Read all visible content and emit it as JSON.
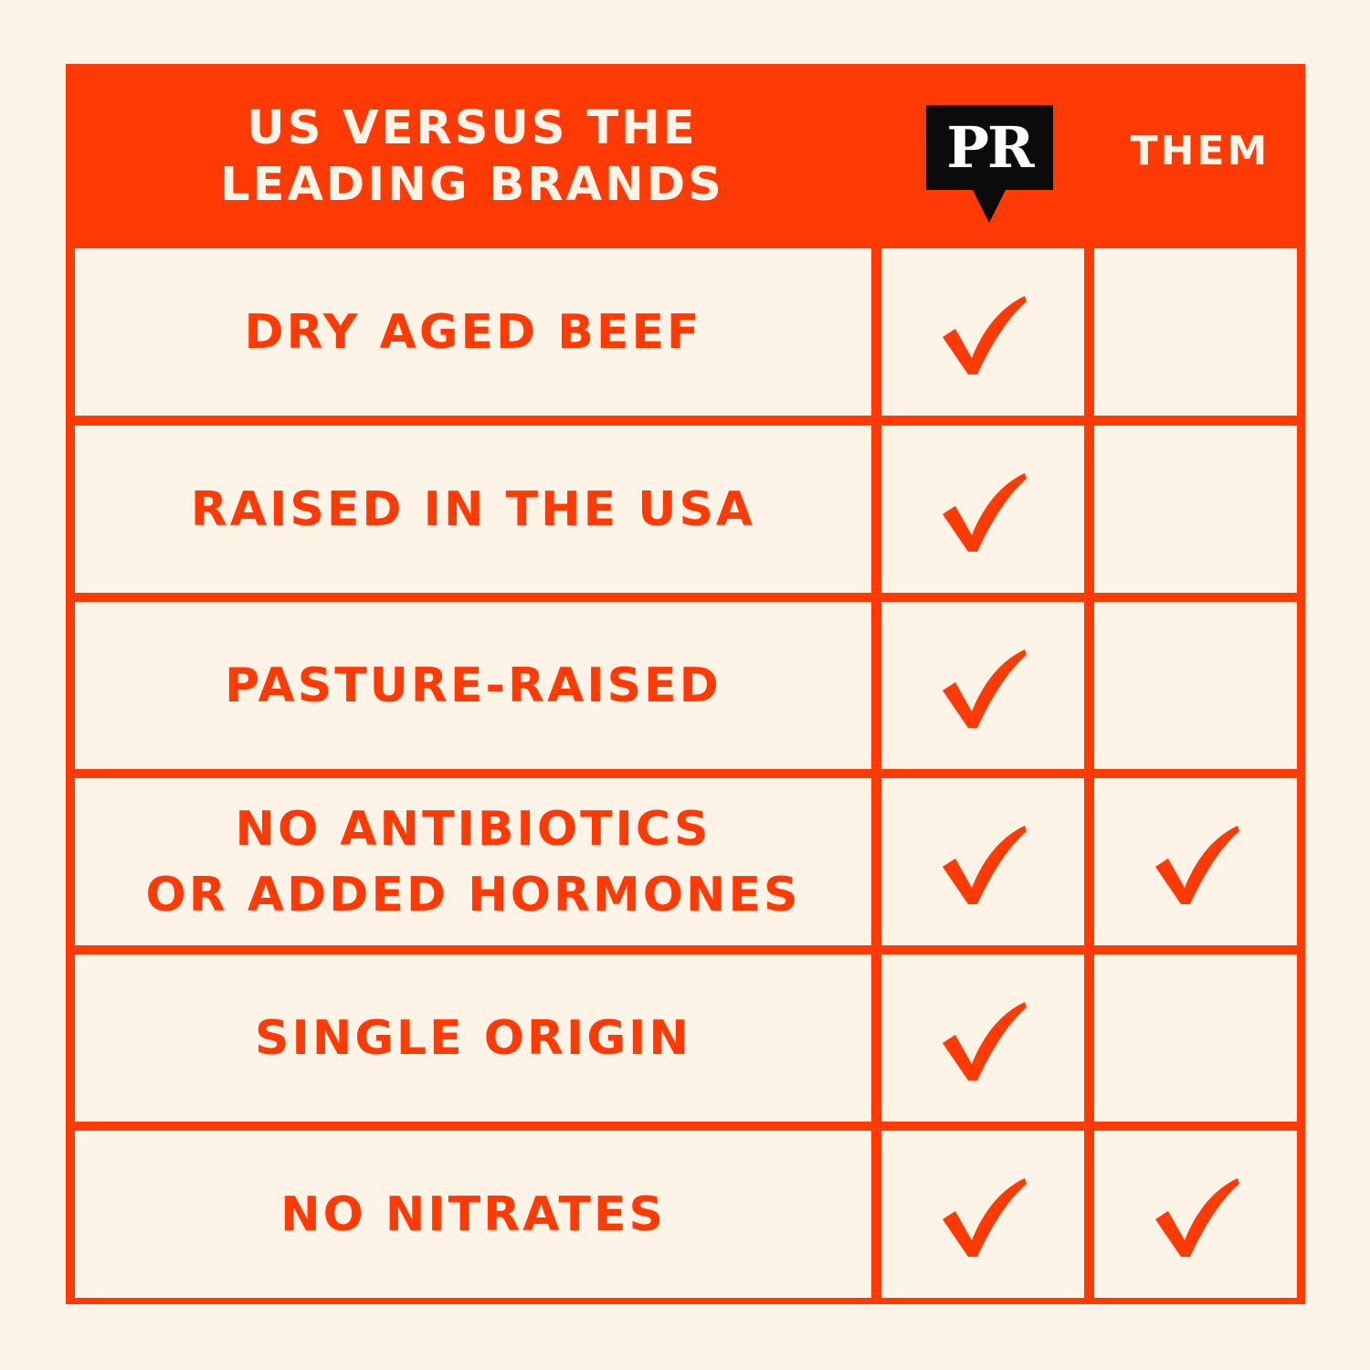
{
  "header": {
    "title": "US VERSUS THE\nLEADING BRANDS",
    "brand_logo_text": "PR",
    "them_label": "THEM"
  },
  "rows": [
    {
      "label": "DRY AGED BEEF",
      "us": true,
      "them": false
    },
    {
      "label": "RAISED IN THE USA",
      "us": true,
      "them": false
    },
    {
      "label": "PASTURE-RAISED",
      "us": true,
      "them": false
    },
    {
      "label": "NO ANTIBIOTICS\nOR ADDED HORMONES",
      "us": true,
      "them": true
    },
    {
      "label": "SINGLE ORIGIN",
      "us": true,
      "them": false
    },
    {
      "label": "NO NITRATES",
      "us": true,
      "them": true
    }
  ],
  "colors": {
    "accent": "#ff3a05",
    "background": "#fdf3e7",
    "logo": "#0b0b0b"
  },
  "icons": {
    "check": "checkmark-icon"
  }
}
